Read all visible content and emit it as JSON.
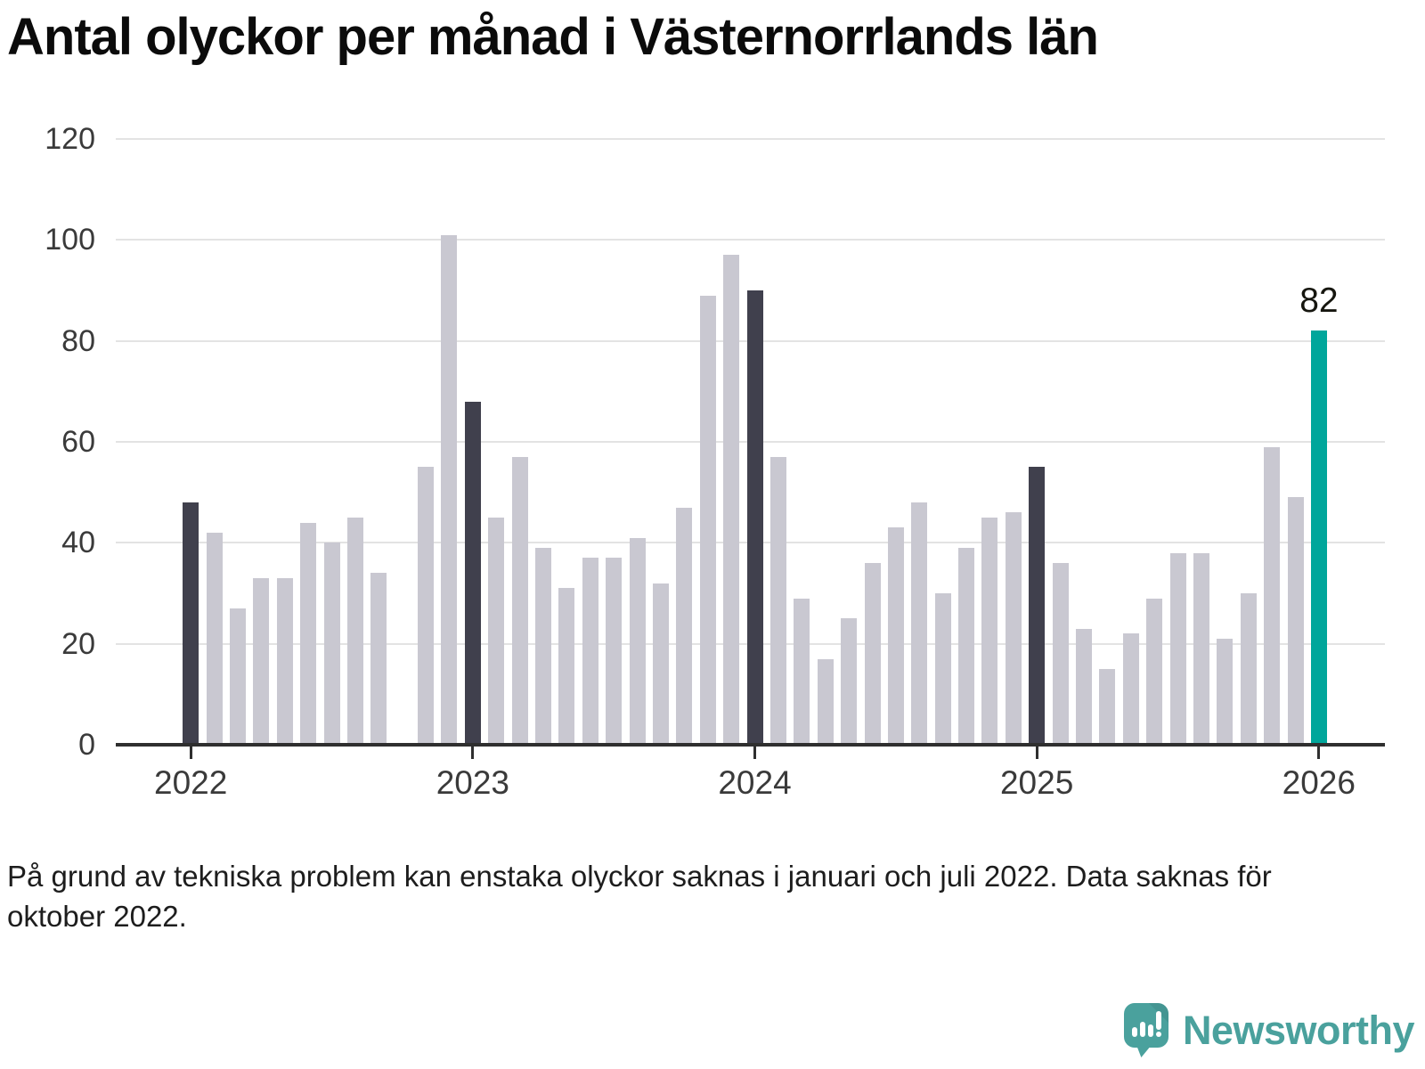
{
  "chart_data": {
    "type": "bar",
    "title": "Antal olyckor per månad i Västernorrlands län",
    "xlabel": "",
    "ylabel": "",
    "ylim": [
      0,
      120
    ],
    "yticks": [
      0,
      20,
      40,
      60,
      80,
      100,
      120
    ],
    "grid": true,
    "x_tick_years": [
      "2022",
      "2023",
      "2024",
      "2025",
      "2026"
    ],
    "colors": {
      "default": "#c9c8d1",
      "january_highlight": "#40404d",
      "current_highlight": "#00a69b"
    },
    "points": [
      {
        "month": "2022-01",
        "value": 48,
        "kind": "january"
      },
      {
        "month": "2022-02",
        "value": 42
      },
      {
        "month": "2022-03",
        "value": 27
      },
      {
        "month": "2022-04",
        "value": 33
      },
      {
        "month": "2022-05",
        "value": 33
      },
      {
        "month": "2022-06",
        "value": 44
      },
      {
        "month": "2022-07",
        "value": 40
      },
      {
        "month": "2022-08",
        "value": 45
      },
      {
        "month": "2022-09",
        "value": 34
      },
      {
        "month": "2022-10",
        "value": null
      },
      {
        "month": "2022-11",
        "value": 55
      },
      {
        "month": "2022-12",
        "value": 101
      },
      {
        "month": "2023-01",
        "value": 68,
        "kind": "january"
      },
      {
        "month": "2023-02",
        "value": 45
      },
      {
        "month": "2023-03",
        "value": 57
      },
      {
        "month": "2023-04",
        "value": 39
      },
      {
        "month": "2023-05",
        "value": 31
      },
      {
        "month": "2023-06",
        "value": 37
      },
      {
        "month": "2023-07",
        "value": 37
      },
      {
        "month": "2023-08",
        "value": 41
      },
      {
        "month": "2023-09",
        "value": 32
      },
      {
        "month": "2023-10",
        "value": 47
      },
      {
        "month": "2023-11",
        "value": 89
      },
      {
        "month": "2023-12",
        "value": 97
      },
      {
        "month": "2024-01",
        "value": 90,
        "kind": "january"
      },
      {
        "month": "2024-02",
        "value": 57
      },
      {
        "month": "2024-03",
        "value": 29
      },
      {
        "month": "2024-04",
        "value": 17
      },
      {
        "month": "2024-05",
        "value": 25
      },
      {
        "month": "2024-06",
        "value": 36
      },
      {
        "month": "2024-07",
        "value": 43
      },
      {
        "month": "2024-08",
        "value": 48
      },
      {
        "month": "2024-09",
        "value": 30
      },
      {
        "month": "2024-10",
        "value": 39
      },
      {
        "month": "2024-11",
        "value": 45
      },
      {
        "month": "2024-12",
        "value": 46
      },
      {
        "month": "2025-01",
        "value": 55,
        "kind": "january"
      },
      {
        "month": "2025-02",
        "value": 36
      },
      {
        "month": "2025-03",
        "value": 23
      },
      {
        "month": "2025-04",
        "value": 15
      },
      {
        "month": "2025-05",
        "value": 22
      },
      {
        "month": "2025-06",
        "value": 29
      },
      {
        "month": "2025-07",
        "value": 38
      },
      {
        "month": "2025-08",
        "value": 38
      },
      {
        "month": "2025-09",
        "value": 21
      },
      {
        "month": "2025-10",
        "value": 30
      },
      {
        "month": "2025-11",
        "value": 59
      },
      {
        "month": "2025-12",
        "value": 49,
        "kind": "default"
      },
      {
        "month": "2026-01",
        "value": 82,
        "kind": "current",
        "label": "82"
      }
    ]
  },
  "footnote": "På grund av tekniska problem kan enstaka olyckor saknas i januari och juli 2022. Data saknas för oktober 2022.",
  "logo": {
    "text": "Newsworthy"
  }
}
